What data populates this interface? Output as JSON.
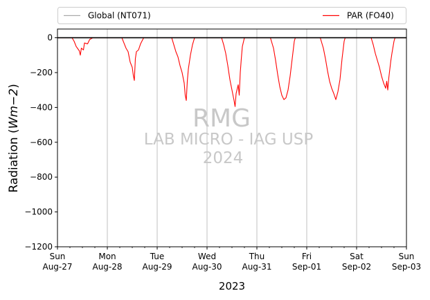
{
  "chart_data": {
    "type": "line",
    "title": "",
    "xlabel": "2023",
    "ylabel": "Radiation (Wm−2)",
    "ylabel_parts": {
      "prefix": "Radiation (",
      "italic": "Wm−2",
      "suffix": ")"
    },
    "ylim": [
      -1200,
      50
    ],
    "xlim": [
      "2023-08-27",
      "2023-09-03"
    ],
    "grid": "vertical-major",
    "legend_placement": "top, above plot",
    "yticks": [
      0,
      -200,
      -400,
      -600,
      -800,
      -1000,
      -1200
    ],
    "ytick_labels": [
      "0",
      "−200",
      "−400",
      "−600",
      "−800",
      "−1000",
      "−1200"
    ],
    "xticks": [
      {
        "day": "Sun",
        "date": "Aug-27"
      },
      {
        "day": "Mon",
        "date": "Aug-28"
      },
      {
        "day": "Tue",
        "date": "Aug-29"
      },
      {
        "day": "Wed",
        "date": "Aug-30"
      },
      {
        "day": "Thu",
        "date": "Aug-31"
      },
      {
        "day": "Fri",
        "date": "Sep-01"
      },
      {
        "day": "Sat",
        "date": "Sep-02"
      },
      {
        "day": "Sun",
        "date": "Sep-03"
      }
    ],
    "series": [
      {
        "name": "Global (NT071)",
        "color": "#000000",
        "legend_color": "#aaaaaa",
        "points": [
          [
            "2023-08-27 00:00",
            0
          ],
          [
            "2023-09-03 00:00",
            0
          ]
        ]
      },
      {
        "name": "PAR (FO40)",
        "color": "#ff0000",
        "points": [
          [
            "2023-08-27 00:00",
            0
          ],
          [
            "2023-08-27 07:00",
            0
          ],
          [
            "2023-08-27 08:00",
            -20
          ],
          [
            "2023-08-27 09:00",
            -50
          ],
          [
            "2023-08-27 10:30",
            -75
          ],
          [
            "2023-08-27 11:00",
            -100
          ],
          [
            "2023-08-27 11:30",
            -60
          ],
          [
            "2023-08-27 12:30",
            -70
          ],
          [
            "2023-08-27 13:00",
            -30
          ],
          [
            "2023-08-27 14:30",
            -35
          ],
          [
            "2023-08-27 15:30",
            -10
          ],
          [
            "2023-08-27 17:00",
            0
          ],
          [
            "2023-08-28 07:00",
            0
          ],
          [
            "2023-08-28 08:00",
            -30
          ],
          [
            "2023-08-28 09:00",
            -60
          ],
          [
            "2023-08-28 10:00",
            -80
          ],
          [
            "2023-08-28 11:00",
            -140
          ],
          [
            "2023-08-28 12:00",
            -170
          ],
          [
            "2023-08-28 12:30",
            -215
          ],
          [
            "2023-08-28 13:00",
            -245
          ],
          [
            "2023-08-28 13:30",
            -120
          ],
          [
            "2023-08-28 14:00",
            -80
          ],
          [
            "2023-08-28 15:00",
            -70
          ],
          [
            "2023-08-28 16:00",
            -35
          ],
          [
            "2023-08-28 17:30",
            0
          ],
          [
            "2023-08-29 07:00",
            0
          ],
          [
            "2023-08-29 08:00",
            -40
          ],
          [
            "2023-08-29 09:00",
            -80
          ],
          [
            "2023-08-29 10:00",
            -110
          ],
          [
            "2023-08-29 11:00",
            -160
          ],
          [
            "2023-08-29 12:00",
            -200
          ],
          [
            "2023-08-29 13:00",
            -260
          ],
          [
            "2023-08-29 13:30",
            -330
          ],
          [
            "2023-08-29 14:00",
            -360
          ],
          [
            "2023-08-29 14:30",
            -250
          ],
          [
            "2023-08-29 15:00",
            -180
          ],
          [
            "2023-08-29 16:00",
            -100
          ],
          [
            "2023-08-29 17:00",
            -40
          ],
          [
            "2023-08-29 18:00",
            0
          ],
          [
            "2023-08-30 07:00",
            0
          ],
          [
            "2023-08-30 08:00",
            -40
          ],
          [
            "2023-08-30 09:00",
            -90
          ],
          [
            "2023-08-30 10:00",
            -160
          ],
          [
            "2023-08-30 11:00",
            -240
          ],
          [
            "2023-08-30 12:00",
            -300
          ],
          [
            "2023-08-30 13:00",
            -360
          ],
          [
            "2023-08-30 13:30",
            -395
          ],
          [
            "2023-08-30 14:00",
            -320
          ],
          [
            "2023-08-30 15:00",
            -270
          ],
          [
            "2023-08-30 15:30",
            -330
          ],
          [
            "2023-08-30 16:00",
            -200
          ],
          [
            "2023-08-30 16:30",
            -120
          ],
          [
            "2023-08-30 17:00",
            -50
          ],
          [
            "2023-08-30 18:00",
            0
          ],
          [
            "2023-08-31 06:30",
            0
          ],
          [
            "2023-08-31 08:00",
            -60
          ],
          [
            "2023-08-31 09:00",
            -130
          ],
          [
            "2023-08-31 10:00",
            -210
          ],
          [
            "2023-08-31 11:00",
            -280
          ],
          [
            "2023-08-31 12:00",
            -330
          ],
          [
            "2023-08-31 13:00",
            -355
          ],
          [
            "2023-08-31 14:00",
            -345
          ],
          [
            "2023-08-31 15:00",
            -300
          ],
          [
            "2023-08-31 16:00",
            -220
          ],
          [
            "2023-08-31 17:00",
            -120
          ],
          [
            "2023-08-31 18:00",
            -20
          ],
          [
            "2023-08-31 18:30",
            0
          ],
          [
            "2023-09-01 06:30",
            0
          ],
          [
            "2023-09-01 08:00",
            -60
          ],
          [
            "2023-09-01 09:00",
            -120
          ],
          [
            "2023-09-01 10:00",
            -190
          ],
          [
            "2023-09-01 11:00",
            -250
          ],
          [
            "2023-09-01 12:00",
            -290
          ],
          [
            "2023-09-01 13:00",
            -320
          ],
          [
            "2023-09-01 14:00",
            -355
          ],
          [
            "2023-09-01 15:00",
            -310
          ],
          [
            "2023-09-01 16:00",
            -240
          ],
          [
            "2023-09-01 17:00",
            -120
          ],
          [
            "2023-09-01 18:00",
            -20
          ],
          [
            "2023-09-01 18:30",
            0
          ],
          [
            "2023-09-02 07:00",
            0
          ],
          [
            "2023-09-02 08:00",
            -40
          ],
          [
            "2023-09-02 09:00",
            -90
          ],
          [
            "2023-09-02 10:00",
            -130
          ],
          [
            "2023-09-02 11:00",
            -170
          ],
          [
            "2023-09-02 12:00",
            -220
          ],
          [
            "2023-09-02 13:00",
            -260
          ],
          [
            "2023-09-02 14:00",
            -290
          ],
          [
            "2023-09-02 14:30",
            -250
          ],
          [
            "2023-09-02 15:00",
            -300
          ],
          [
            "2023-09-02 15:30",
            -230
          ],
          [
            "2023-09-02 16:00",
            -180
          ],
          [
            "2023-09-02 16:30",
            -130
          ],
          [
            "2023-09-02 17:00",
            -90
          ],
          [
            "2023-09-02 18:00",
            -20
          ],
          [
            "2023-09-02 18:30",
            0
          ],
          [
            "2023-09-03 00:00",
            0
          ]
        ]
      }
    ]
  },
  "legend": {
    "items": [
      {
        "label": "Global (NT071)",
        "color": "#aaaaaa"
      },
      {
        "label": "PAR (FO40)",
        "color": "#ff0000"
      }
    ]
  },
  "watermark": {
    "line1": "RMG",
    "line2": "LAB MICRO - IAG USP",
    "line3": "2024"
  }
}
